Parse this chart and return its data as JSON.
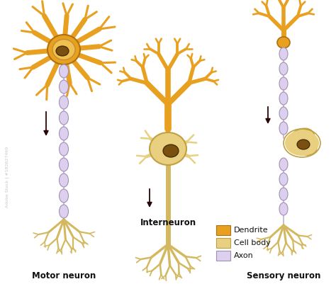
{
  "bg_color": "#ffffff",
  "dendrite_color": "#E8A020",
  "dendrite_dark": "#B07010",
  "cell_body_color": "#E8D080",
  "cell_body_dark": "#C0A040",
  "axon_color": "#DDD0EE",
  "axon_outline": "#A090B8",
  "nucleus_color": "#7a5010",
  "terminal_color": "#D4B860",
  "arrow_color": "#2a0505",
  "text_color": "#111111",
  "title_motor": "Motor neuron",
  "title_interneuron": "Interneuron",
  "title_sensory": "Sensory neuron",
  "legend_dendrite": "Dendrite",
  "legend_cell_body": "Cell body",
  "legend_axon": "Axon",
  "watermark_text": "Adobe Stock | #182627469"
}
